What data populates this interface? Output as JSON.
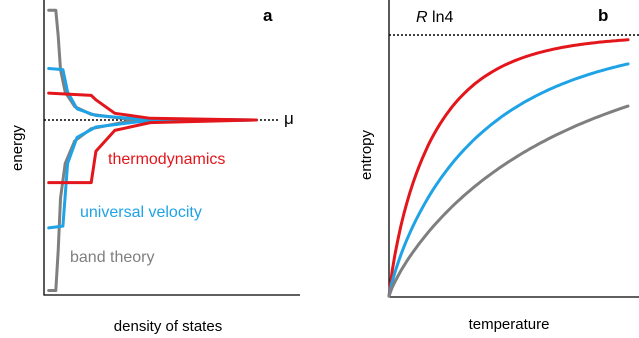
{
  "chart_data": [
    {
      "type": "line",
      "panel_label": "a",
      "xlabel": "density of states",
      "ylabel": "energy",
      "reference_label": "μ",
      "ylim": [
        -1,
        1
      ],
      "xlim": [
        0,
        1
      ],
      "series": [
        {
          "name": "band theory",
          "color": "#7f7f7f",
          "points": [
            [
              0.02,
              -0.98
            ],
            [
              0.05,
              -0.98
            ],
            [
              0.06,
              -0.75
            ],
            [
              0.07,
              -0.45
            ],
            [
              0.09,
              -0.25
            ],
            [
              0.13,
              -0.12
            ],
            [
              0.2,
              -0.05
            ],
            [
              0.35,
              -0.01
            ],
            [
              0.9,
              0
            ],
            [
              0.35,
              0.01
            ],
            [
              0.2,
              0.05
            ],
            [
              0.13,
              0.12
            ],
            [
              0.09,
              0.25
            ],
            [
              0.07,
              0.45
            ],
            [
              0.06,
              0.75
            ],
            [
              0.05,
              0.98
            ],
            [
              0.02,
              0.98
            ]
          ]
        },
        {
          "name": "universal velocity",
          "color": "#1fa3e6",
          "points": [
            [
              0.02,
              -0.62
            ],
            [
              0.08,
              -0.61
            ],
            [
              0.1,
              -0.25
            ],
            [
              0.14,
              -0.1
            ],
            [
              0.22,
              -0.04
            ],
            [
              0.4,
              -0.01
            ],
            [
              0.9,
              0
            ],
            [
              0.4,
              0.01
            ],
            [
              0.22,
              0.04
            ],
            [
              0.14,
              0.1
            ],
            [
              0.1,
              0.25
            ],
            [
              0.08,
              0.45
            ],
            [
              0.02,
              0.46
            ]
          ]
        },
        {
          "name": "thermodynamics",
          "color": "#e3161b",
          "points": [
            [
              0.02,
              -0.36
            ],
            [
              0.2,
              -0.36
            ],
            [
              0.22,
              -0.18
            ],
            [
              0.3,
              -0.06
            ],
            [
              0.45,
              -0.015
            ],
            [
              0.9,
              0
            ],
            [
              0.45,
              0.015
            ],
            [
              0.3,
              0.06
            ],
            [
              0.22,
              0.18
            ],
            [
              0.2,
              0.22
            ],
            [
              0.02,
              0.24
            ]
          ]
        }
      ]
    },
    {
      "type": "line",
      "panel_label": "b",
      "xlabel": "temperature",
      "ylabel": "entropy",
      "reference_label_italic": "R",
      "reference_label": " ln4",
      "reference_value": 1.0,
      "ylim": [
        0,
        1.04
      ],
      "xlim": [
        0,
        1
      ],
      "series": [
        {
          "name": "",
          "color": "#e3161b",
          "rate": 4.0
        },
        {
          "name": "",
          "color": "#1fa3e6",
          "rate": 2.2
        },
        {
          "name": "",
          "color": "#7f7f7f",
          "rate": 1.3
        }
      ]
    }
  ]
}
